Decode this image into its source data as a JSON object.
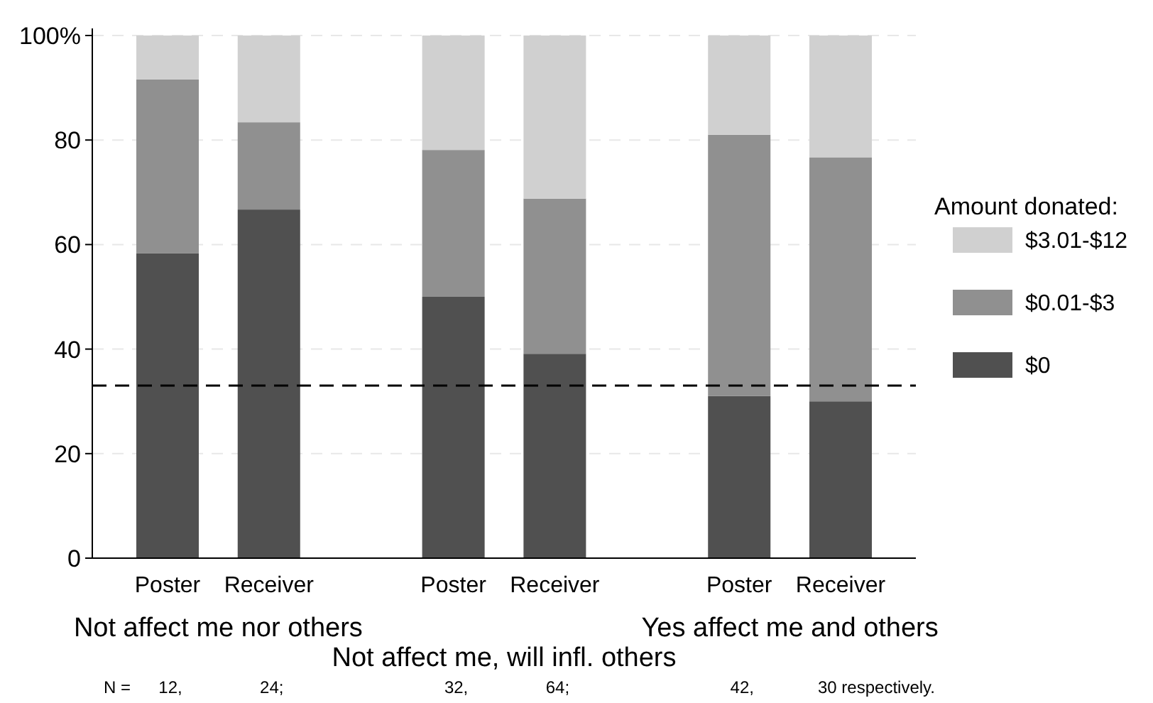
{
  "chart_data": {
    "type": "bar",
    "stacked": true,
    "categories": [
      "Poster",
      "Receiver",
      "Poster",
      "Receiver",
      "Poster",
      "Receiver"
    ],
    "series": [
      {
        "name": "$0",
        "color": "#505050",
        "values": [
          58.3,
          66.7,
          50,
          39.1,
          31,
          30
        ]
      },
      {
        "name": "$0.01-$3",
        "color": "#909090",
        "values": [
          33.3,
          16.7,
          28.1,
          29.7,
          50,
          46.7
        ]
      },
      {
        "name": "$3.01-$12",
        "color": "#d0d0d0",
        "values": [
          8.4,
          16.6,
          21.9,
          31.2,
          19,
          23.3
        ]
      }
    ],
    "ylim": [
      0,
      100
    ],
    "yticks": [
      0,
      20,
      40,
      60,
      80,
      {
        "value": 100,
        "label": "100%"
      }
    ],
    "grid": "y",
    "legend": "right",
    "legend_title": "Amount donated:",
    "ref_lines": [
      {
        "axis": "y",
        "value": 33,
        "color": "#000000",
        "line_style": "dashed"
      }
    ],
    "annotations": [
      "Not affect me nor others",
      "Not affect me, will infl. others",
      "Yes affect me and others",
      "N =",
      "12,",
      "24;",
      "32,",
      "64;",
      "42,",
      "30 respectively."
    ]
  }
}
